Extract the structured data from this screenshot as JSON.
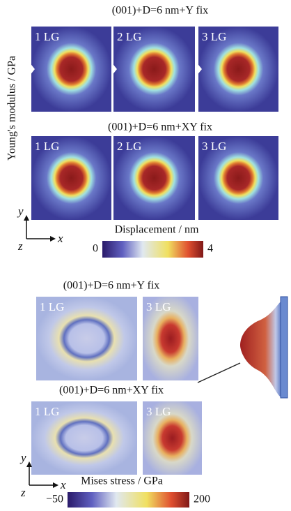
{
  "y_label": "Young's modulus / GPa",
  "top": {
    "groups": [
      {
        "title": "(001)+D=6 nm+Y fix",
        "panels": [
          "1 LG",
          "2 LG",
          "3 LG"
        ]
      },
      {
        "title": "(001)+D=6 nm+XY fix",
        "panels": [
          "1 LG",
          "2 LG",
          "3 LG"
        ]
      }
    ],
    "axes": {
      "y": "y",
      "z": "z",
      "x": "x"
    },
    "colorbar": {
      "label": "Displacement / nm",
      "min": "0",
      "max": "4"
    }
  },
  "bottom": {
    "groups": [
      {
        "title": "(001)+D=6 nm+Y fix",
        "panels": [
          "1 LG",
          "3 LG"
        ]
      },
      {
        "title": "(001)+D=6 nm+XY fix",
        "panels": [
          "1 LG",
          "3 LG"
        ]
      }
    ],
    "axes": {
      "y": "y",
      "z": "z",
      "x": "x"
    },
    "colorbar": {
      "label": "Mises stress / GPa",
      "min": "−50",
      "max": "200"
    }
  }
}
